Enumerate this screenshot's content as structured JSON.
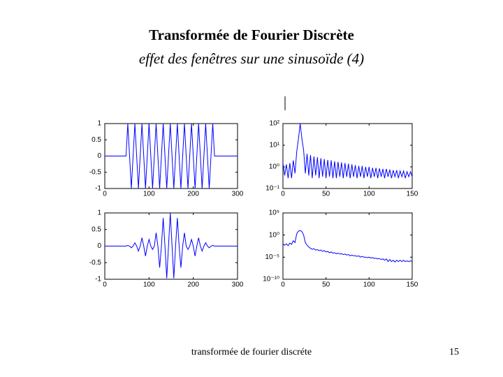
{
  "title": "Transformée de Fourier Discrète",
  "subtitle": "effet des fenêtres sur une sinusoïde (4)",
  "footer": "transformée de fourier discréte",
  "page_number": "15",
  "chart_data": [
    {
      "type": "line",
      "color": "#0000ff",
      "log_y": false,
      "xlim": [
        0,
        300
      ],
      "ylim": [
        -1,
        1
      ],
      "xticks": [
        0,
        100,
        200,
        300
      ],
      "yticks": [
        -1,
        -0.5,
        0,
        0.5,
        1
      ],
      "x": [
        0,
        4,
        8,
        12,
        16,
        20,
        24,
        28,
        32,
        36,
        40,
        44,
        48,
        52,
        56,
        60,
        64,
        68,
        72,
        76,
        80,
        84,
        88,
        92,
        96,
        100,
        104,
        108,
        112,
        116,
        120,
        124,
        128,
        132,
        136,
        140,
        144,
        148,
        152,
        156,
        160,
        164,
        168,
        172,
        176,
        180,
        184,
        188,
        192,
        196,
        200,
        204,
        208,
        212,
        216,
        220,
        224,
        228,
        232,
        236,
        240,
        244,
        248,
        252,
        256,
        260,
        264,
        268,
        272,
        276,
        280,
        284,
        288,
        292,
        296,
        300
      ],
      "values": [
        0,
        0,
        0,
        0,
        0,
        0,
        0,
        0,
        0,
        0,
        0,
        0,
        0,
        1,
        0,
        -1,
        0,
        1,
        0,
        -1,
        0,
        1,
        0,
        -1,
        0,
        1,
        0,
        -1,
        0,
        1,
        0,
        -1,
        0,
        1,
        0,
        -1,
        0,
        1,
        0,
        -1,
        0,
        1,
        0,
        -1,
        0,
        1,
        0,
        -1,
        0,
        1,
        0,
        -1,
        0,
        1,
        0,
        -1,
        0,
        1,
        0,
        -1,
        0,
        1,
        0,
        0,
        0,
        0,
        0,
        0,
        0,
        0,
        0,
        0,
        0,
        0,
        0,
        0
      ]
    },
    {
      "type": "line",
      "color": "#0000ff",
      "log_y": true,
      "xlim": [
        0,
        150
      ],
      "ylim": [
        0.1,
        100
      ],
      "xticks": [
        0,
        50,
        100,
        150
      ],
      "yticks": [
        {
          "value": 0.1,
          "label": "10⁻¹"
        },
        {
          "value": 1,
          "label": "10⁰"
        },
        {
          "value": 10,
          "label": "10¹"
        },
        {
          "value": 100,
          "label": "10²"
        }
      ],
      "x": [
        0,
        2,
        4,
        6,
        8,
        10,
        12,
        14,
        16,
        18,
        20,
        22,
        24,
        26,
        28,
        30,
        32,
        34,
        36,
        38,
        40,
        42,
        44,
        46,
        48,
        50,
        52,
        54,
        56,
        58,
        60,
        62,
        64,
        66,
        68,
        70,
        72,
        74,
        76,
        78,
        80,
        82,
        84,
        86,
        88,
        90,
        92,
        94,
        96,
        98,
        100,
        102,
        104,
        106,
        108,
        110,
        112,
        114,
        116,
        118,
        120,
        122,
        124,
        126,
        128,
        130,
        132,
        134,
        136,
        138,
        140,
        142,
        144,
        146,
        148,
        150
      ],
      "values": [
        1.5,
        0.4,
        1.3,
        0.3,
        1.5,
        0.3,
        2,
        0.5,
        5,
        20,
        100,
        20,
        6,
        0.5,
        4,
        0.4,
        3.5,
        0.3,
        3,
        0.4,
        2.8,
        0.3,
        2.5,
        0.35,
        2.3,
        0.3,
        2.1,
        0.35,
        2,
        0.3,
        1.8,
        0.3,
        1.7,
        0.35,
        1.6,
        0.3,
        1.5,
        0.35,
        1.4,
        0.3,
        1.3,
        0.35,
        1.2,
        0.3,
        1.1,
        0.35,
        1.1,
        0.3,
        1,
        0.35,
        1,
        0.3,
        0.9,
        0.35,
        0.9,
        0.3,
        0.85,
        0.35,
        0.8,
        0.3,
        0.8,
        0.35,
        0.75,
        0.3,
        0.7,
        0.35,
        0.7,
        0.3,
        0.65,
        0.35,
        0.65,
        0.3,
        0.6,
        0.35,
        0.6,
        0.35
      ]
    },
    {
      "type": "line",
      "color": "#0000ff",
      "log_y": false,
      "xlim": [
        0,
        300
      ],
      "ylim": [
        -1,
        1
      ],
      "xticks": [
        0,
        100,
        200,
        300
      ],
      "yticks": [
        -1,
        -0.5,
        0,
        0.5,
        1
      ],
      "x": [
        0,
        4,
        8,
        12,
        16,
        20,
        24,
        28,
        32,
        36,
        40,
        44,
        48,
        52,
        56,
        60,
        64,
        68,
        72,
        76,
        80,
        84,
        88,
        92,
        96,
        100,
        104,
        108,
        112,
        116,
        120,
        124,
        128,
        132,
        136,
        140,
        144,
        148,
        152,
        156,
        160,
        164,
        168,
        172,
        176,
        180,
        184,
        188,
        192,
        196,
        200,
        204,
        208,
        212,
        216,
        220,
        224,
        228,
        232,
        236,
        240,
        244,
        248,
        252,
        256,
        260,
        264,
        268,
        272,
        276,
        280,
        284,
        288,
        292,
        296,
        300
      ],
      "values": [
        0,
        0,
        0,
        0,
        0,
        0,
        0,
        0,
        0,
        0,
        0,
        0,
        0,
        0.02,
        0,
        -0.05,
        0,
        0.1,
        0,
        -0.15,
        0,
        0.25,
        0,
        -0.3,
        0,
        0.2,
        0,
        -0.1,
        0,
        0.4,
        0,
        -0.65,
        0,
        0.85,
        0,
        -0.97,
        0,
        1,
        0,
        -0.97,
        0,
        0.85,
        0,
        -0.65,
        0,
        0.4,
        0,
        -0.1,
        0,
        0.2,
        0,
        -0.3,
        0,
        0.25,
        0,
        -0.15,
        0,
        0.1,
        0,
        -0.05,
        0,
        0.02,
        0,
        0,
        0,
        0,
        0,
        0,
        0,
        0,
        0,
        0,
        0,
        0,
        0,
        0
      ]
    },
    {
      "type": "line",
      "color": "#0000ff",
      "log_y": true,
      "xlim": [
        0,
        150
      ],
      "ylim": [
        1e-10,
        100000
      ],
      "xticks": [
        0,
        50,
        100,
        150
      ],
      "yticks": [
        {
          "value": 1e-10,
          "label": "10⁻¹⁰"
        },
        {
          "value": 1e-05,
          "label": "10⁻⁵"
        },
        {
          "value": 1,
          "label": "10⁰"
        },
        {
          "value": 100000,
          "label": "10⁵"
        }
      ],
      "x": [
        0,
        2,
        4,
        6,
        8,
        10,
        12,
        14,
        16,
        18,
        20,
        22,
        24,
        26,
        28,
        30,
        32,
        34,
        36,
        38,
        40,
        42,
        44,
        46,
        48,
        50,
        52,
        54,
        56,
        58,
        60,
        62,
        64,
        66,
        68,
        70,
        72,
        74,
        76,
        78,
        80,
        82,
        84,
        86,
        88,
        90,
        92,
        94,
        96,
        98,
        100,
        102,
        104,
        106,
        108,
        110,
        112,
        114,
        116,
        118,
        120,
        122,
        124,
        126,
        128,
        130,
        132,
        134,
        136,
        138,
        140,
        142,
        144,
        146,
        148,
        150
      ],
      "values": [
        0.01,
        0.005,
        0.01,
        0.004,
        0.015,
        0.008,
        0.05,
        0.02,
        2,
        8,
        10,
        6,
        1,
        0.02,
        0.005,
        0.002,
        0.001,
        0.0006,
        0.0008,
        0.0004,
        0.0005,
        0.0003,
        0.0004,
        0.0002,
        0.0003,
        0.00015,
        0.0002,
        0.0001,
        0.00015,
        8e-05,
        0.0001,
        6e-05,
        8e-05,
        5e-05,
        6e-05,
        4e-05,
        5e-05,
        3e-05,
        4e-05,
        2e-05,
        3e-05,
        2e-05,
        2e-05,
        1.5e-05,
        2e-05,
        1e-05,
        1.5e-05,
        1e-05,
        1e-05,
        8e-06,
        1e-05,
        6e-06,
        8e-06,
        5e-06,
        6e-06,
        4e-06,
        5e-06,
        3e-06,
        4e-06,
        2e-06,
        4e-06,
        1e-06,
        3e-06,
        1e-06,
        2e-06,
        8e-07,
        2e-06,
        1e-06,
        2e-06,
        1e-06,
        2e-06,
        1e-06,
        1.5e-06,
        1e-06,
        1.5e-06,
        1e-06
      ]
    }
  ]
}
